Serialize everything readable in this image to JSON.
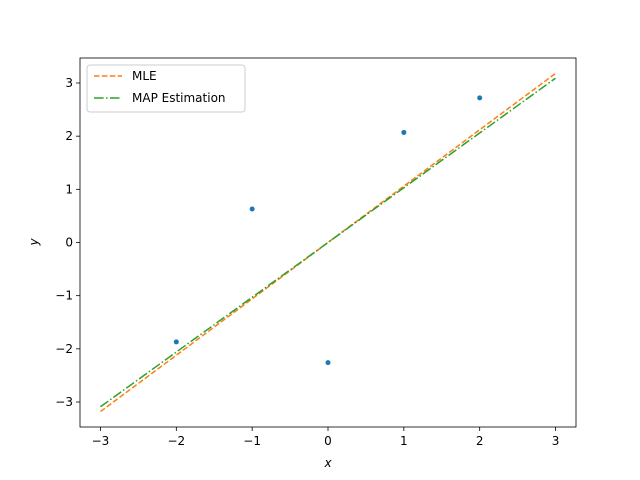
{
  "chart_data": {
    "type": "line",
    "xlabel": "x",
    "ylabel": "y",
    "xlim": [
      -3.27,
      3.27
    ],
    "ylim": [
      -3.47,
      3.47
    ],
    "xticks": [
      -3,
      -2,
      -1,
      0,
      1,
      2,
      3
    ],
    "yticks": [
      -3,
      -2,
      -1,
      0,
      1,
      2,
      3
    ],
    "grid": false,
    "legend_position": "top-left",
    "points": {
      "color": "#1f77b4",
      "x": [
        -2,
        -1,
        0,
        1,
        2
      ],
      "y": [
        -1.87,
        0.63,
        -2.26,
        2.07,
        2.72
      ]
    },
    "series": [
      {
        "name": "MLE",
        "color": "#ff7f0e",
        "linestyle": "dashed",
        "x": [
          -3,
          3
        ],
        "y": [
          -3.18,
          3.18
        ]
      },
      {
        "name": "MAP Estimation",
        "color": "#2ca02c",
        "linestyle": "dashdot",
        "x": [
          -3,
          3
        ],
        "y": [
          -3.09,
          3.09
        ]
      }
    ]
  }
}
